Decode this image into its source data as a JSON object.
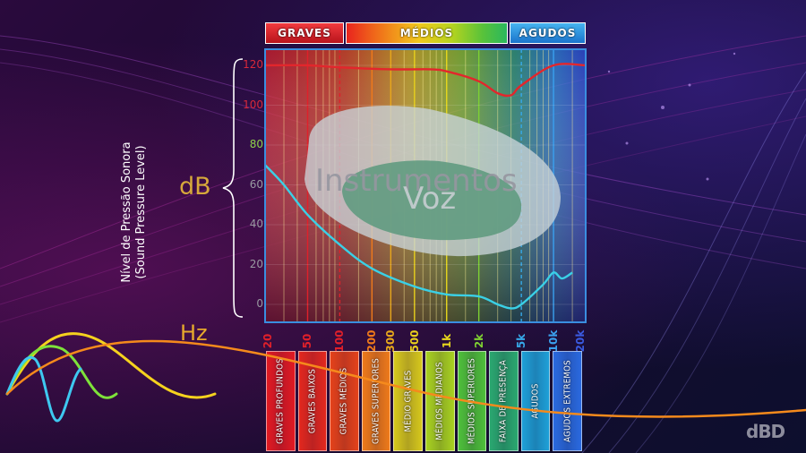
{
  "chart_data": {
    "type": "area",
    "title": "",
    "ylabel": "Nível de Pressão Sonora\n(Sound Pressure Level)",
    "yunit": "dB",
    "xunit": "Hz",
    "ylim": [
      -5,
      125
    ],
    "x_scale": "log",
    "xlim": [
      20,
      20000
    ],
    "y_ticks": [
      {
        "label": "120",
        "value": 120,
        "color": "#d8283a"
      },
      {
        "label": "100",
        "value": 100,
        "color": "#d8283a"
      },
      {
        "label": "80",
        "value": 80,
        "color": "#8fd34a"
      },
      {
        "label": "60",
        "value": 60,
        "color": "#9a9aa2"
      },
      {
        "label": "40",
        "value": 40,
        "color": "#9a9aa2"
      },
      {
        "label": "20",
        "value": 20,
        "color": "#9a9aa2"
      },
      {
        "label": "0",
        "value": 0,
        "color": "#9a9aa2"
      }
    ],
    "x_ticks": [
      {
        "label": "20",
        "value": 20,
        "color": "#e0202a"
      },
      {
        "label": "50",
        "value": 50,
        "color": "#e0202a"
      },
      {
        "label": "100",
        "value": 100,
        "color": "#e0202a"
      },
      {
        "label": "200",
        "value": 200,
        "color": "#f07a1a"
      },
      {
        "label": "300",
        "value": 300,
        "color": "#e8a81c"
      },
      {
        "label": "500",
        "value": 500,
        "color": "#e8d01c"
      },
      {
        "label": "1k",
        "value": 1000,
        "color": "#e8d81c"
      },
      {
        "label": "2k",
        "value": 2000,
        "color": "#7ed032"
      },
      {
        "label": "5k",
        "value": 5000,
        "color": "#36a8e8"
      },
      {
        "label": "10k",
        "value": 10000,
        "color": "#3aa0ee"
      },
      {
        "label": "20k",
        "value": 20000,
        "color": "#3a5ae0"
      }
    ],
    "top_bands": [
      {
        "label": "GRAVES",
        "from": 20,
        "to": 100,
        "color": "#e0262e"
      },
      {
        "label": "MÉDIOS",
        "from": 100,
        "to": 5000,
        "color": "#f2c51c"
      },
      {
        "label": "AGUDOS",
        "from": 5000,
        "to": 20000,
        "color": "#2a9ae8"
      }
    ],
    "sub_bands": [
      {
        "label": "GRAVES PROFUNDOS",
        "color": "#e11a22"
      },
      {
        "label": "GRAVES BAIXOS",
        "color": "#e3281e"
      },
      {
        "label": "GRAVES MÉDIOS",
        "color": "#e4421a"
      },
      {
        "label": "GRAVES SUPERIORES",
        "color": "#ee7a1a"
      },
      {
        "label": "MÉDIO GRAVES",
        "color": "#d6c81c"
      },
      {
        "label": "MÉDIOS MEDIANOS",
        "color": "#a8d220"
      },
      {
        "label": "MÉDIOS SUPERIORES",
        "color": "#4ec03a"
      },
      {
        "label": "FAIXA DE PRESENÇA",
        "color": "#2aa870"
      },
      {
        "label": "AGUDOS",
        "color": "#1ea0d8"
      },
      {
        "label": "AGUDOS EXTREMOS",
        "color": "#2a6ae0"
      }
    ],
    "areas": [
      {
        "label": "Instrumentos"
      },
      {
        "label": "Voz"
      }
    ],
    "series": [
      {
        "role": "pain-threshold",
        "color": "#e3262c",
        "x": [
          20,
          50,
          100,
          300,
          700,
          1000,
          2000,
          3000,
          4000,
          5000,
          10000,
          20000
        ],
        "y": [
          120,
          120,
          119,
          118,
          118,
          117,
          112,
          106,
          105,
          110,
          120,
          120
        ]
      },
      {
        "role": "hearing-threshold",
        "color": "#3ad0e6",
        "x": [
          20,
          30,
          50,
          100,
          200,
          500,
          1000,
          2000,
          3000,
          4000,
          5000,
          8000,
          10000,
          12000,
          15000
        ],
        "y": [
          70,
          60,
          45,
          30,
          18,
          9,
          5,
          4,
          0,
          -2,
          0,
          10,
          16,
          13,
          16
        ]
      }
    ]
  },
  "labels": {
    "db": "dB",
    "hz": "Hz",
    "logo": "dBD"
  }
}
